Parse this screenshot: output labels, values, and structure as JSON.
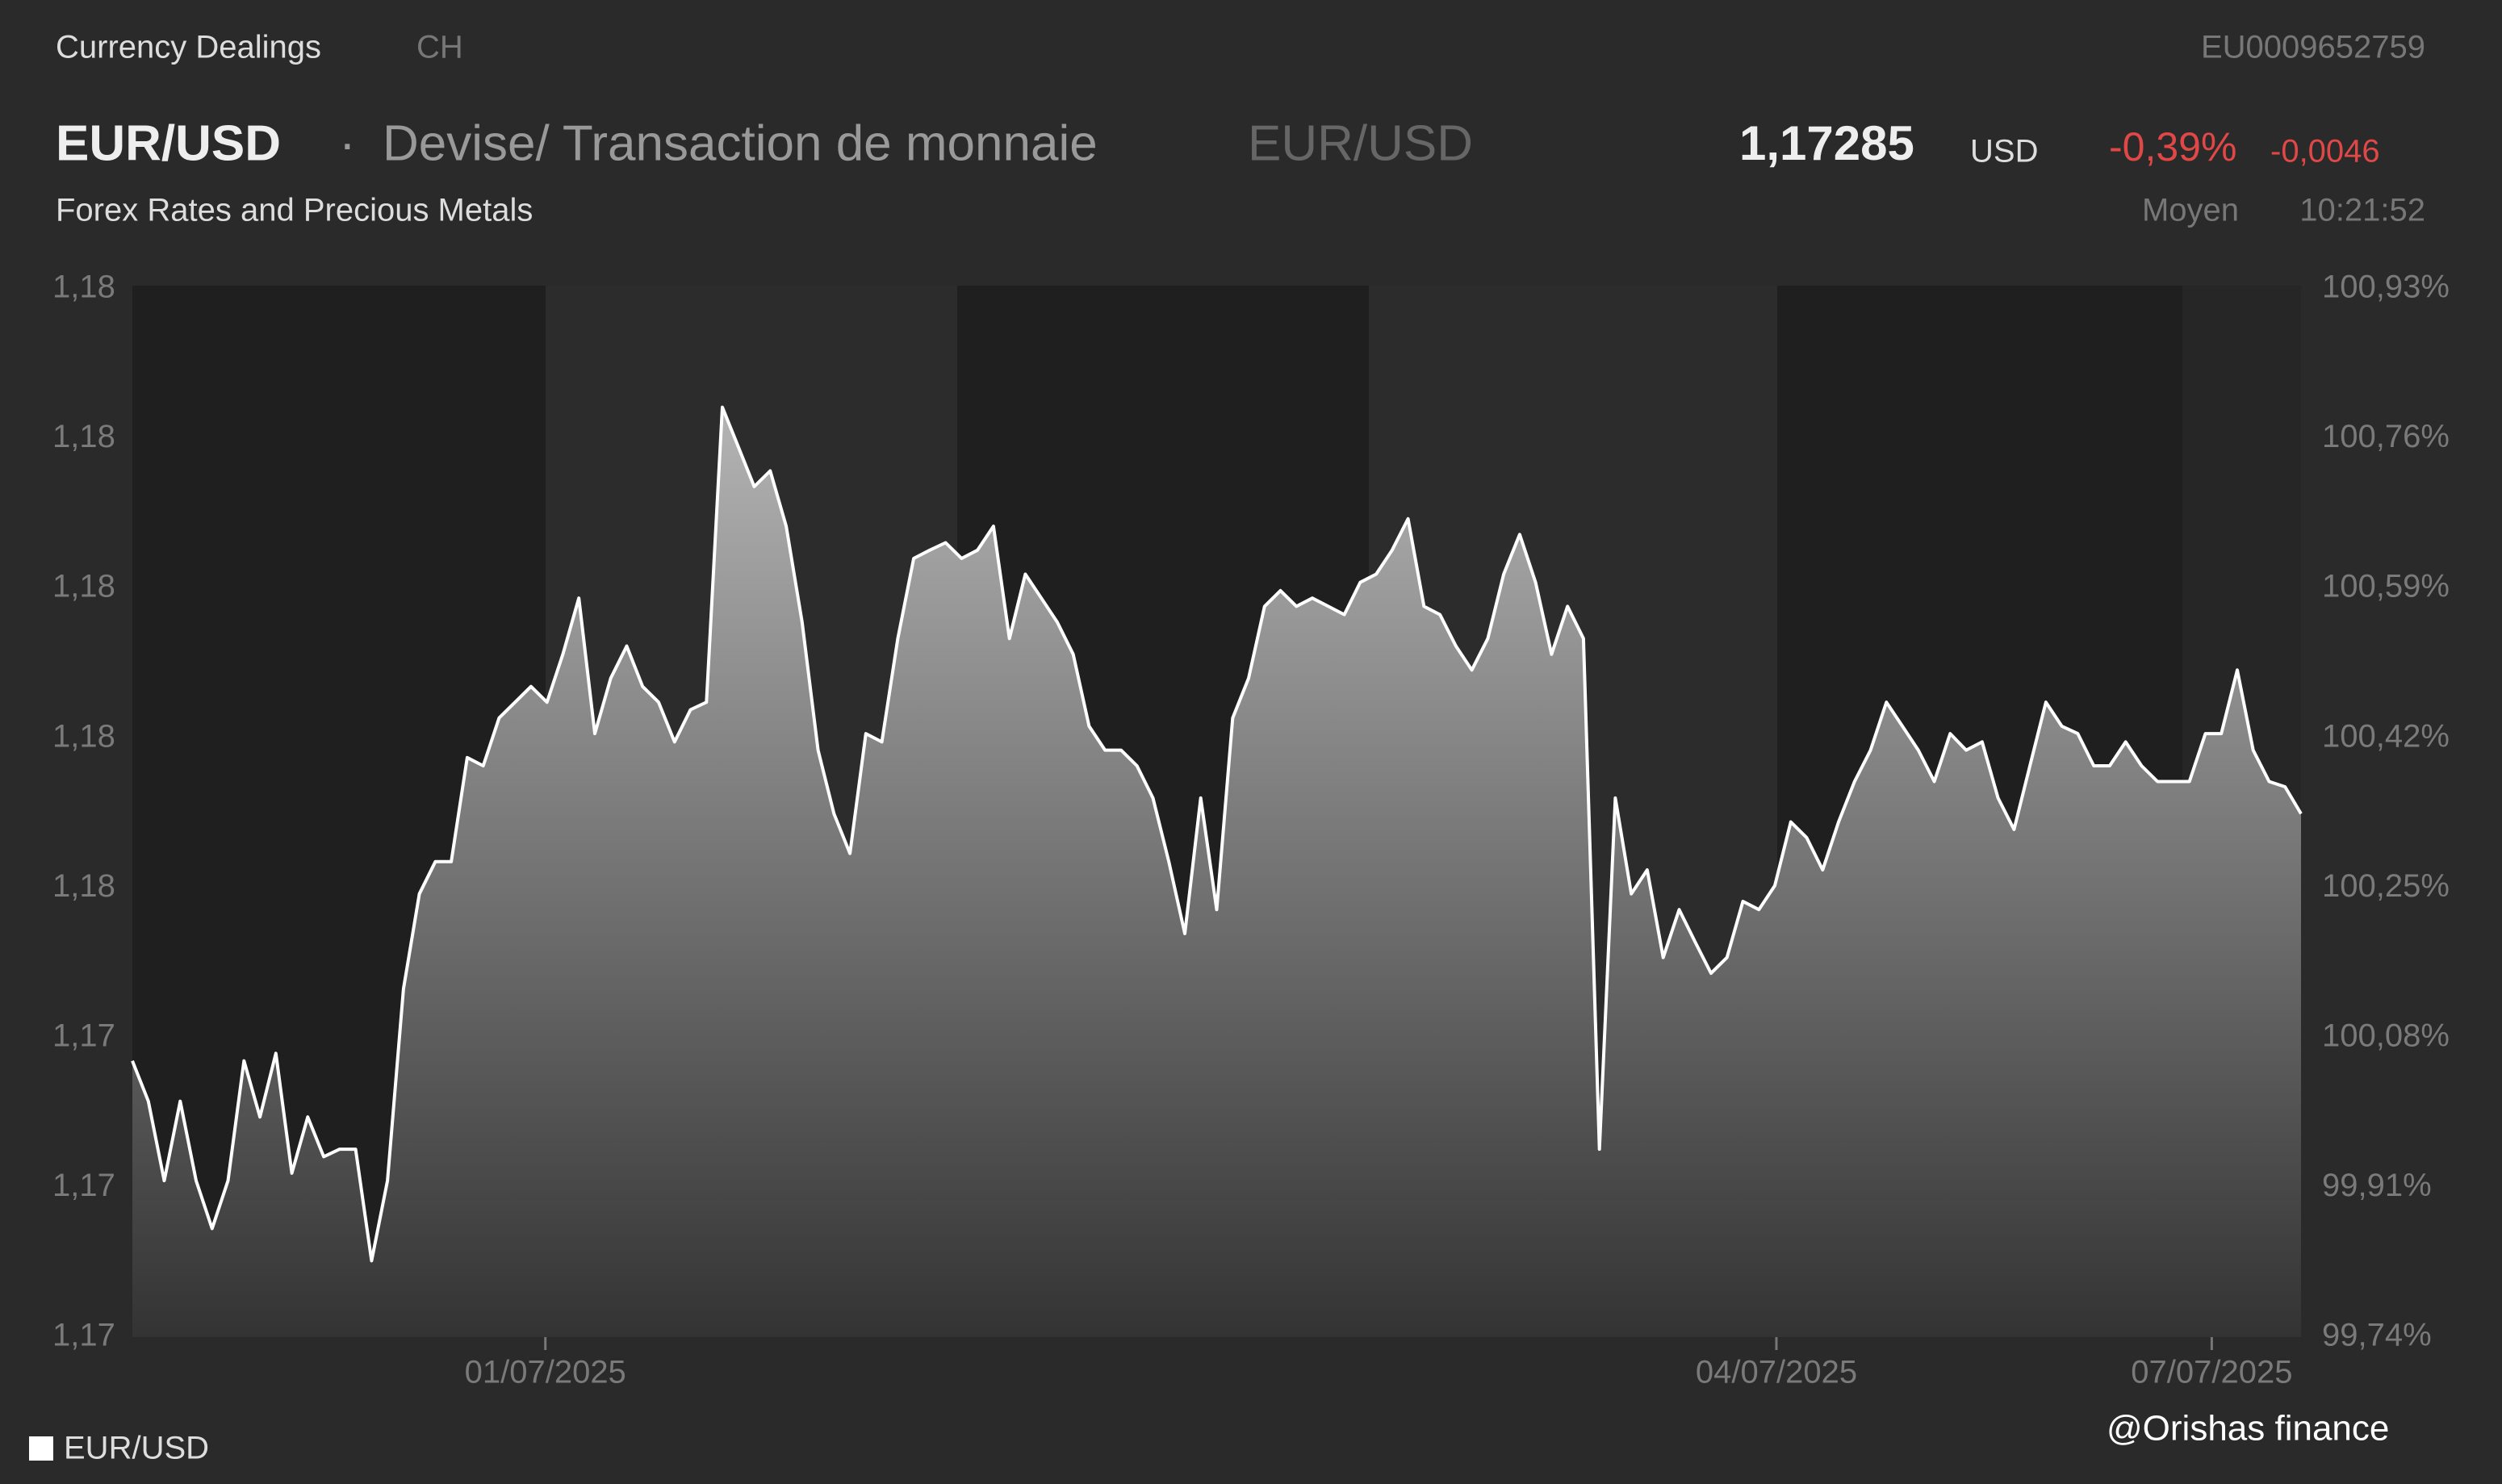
{
  "header": {
    "section": "Currency Dealings",
    "country": "CH",
    "isin": "EU0009652759",
    "symbol": "EUR/USD",
    "separator": "·",
    "description": "Devise/ Transaction de monnaie",
    "symbol_alt": "EUR/USD",
    "price": "1,17285",
    "currency": "USD",
    "change_pct": "-0,39%",
    "change_abs": "-0,0046",
    "category": "Forex Rates and Precious Metals",
    "quote_type": "Moyen",
    "time": "10:21:52"
  },
  "watermark": "@Orishas finance",
  "chart_data": {
    "type": "area",
    "series": [
      {
        "name": "EUR/USD",
        "color": "#ffffff",
        "values": [
          1.17369,
          1.17315,
          1.17209,
          1.17315,
          1.17209,
          1.17145,
          1.17209,
          1.17369,
          1.17294,
          1.17379,
          1.17219,
          1.17294,
          1.17241,
          1.17251,
          1.17251,
          1.17102,
          1.17209,
          1.17465,
          1.17592,
          1.17635,
          1.17635,
          1.17774,
          1.17763,
          1.17827,
          1.17848,
          1.17869,
          1.17848,
          1.17912,
          1.17987,
          1.17806,
          1.1788,
          1.17923,
          1.17869,
          1.17848,
          1.17795,
          1.17838,
          1.17848,
          1.18242,
          1.18189,
          1.18136,
          1.18157,
          1.18083,
          1.17955,
          1.17784,
          1.17699,
          1.17646,
          1.17806,
          1.17795,
          1.17933,
          1.1804,
          1.18051,
          1.18061,
          1.1804,
          1.18051,
          1.18083,
          1.17933,
          1.18019,
          1.17987,
          1.17955,
          1.17912,
          1.17816,
          1.17784,
          1.17784,
          1.17763,
          1.1772,
          1.17635,
          1.17539,
          1.1772,
          1.17571,
          1.17827,
          1.1788,
          1.17976,
          1.17997,
          1.17976,
          1.17987,
          1.17976,
          1.17965,
          1.18008,
          1.18019,
          1.18051,
          1.18093,
          1.17976,
          1.17965,
          1.17923,
          1.17891,
          1.17933,
          1.18019,
          1.18072,
          1.18008,
          1.17912,
          1.17976,
          1.17933,
          1.17251,
          1.1772,
          1.17592,
          1.17624,
          1.17507,
          1.17571,
          1.17528,
          1.17486,
          1.17507,
          1.17582,
          1.17571,
          1.17603,
          1.17688,
          1.17667,
          1.17624,
          1.17688,
          1.17742,
          1.17784,
          1.17848,
          1.17816,
          1.17784,
          1.17742,
          1.17806,
          1.17784,
          1.17795,
          1.1772,
          1.17678,
          1.17763,
          1.17848,
          1.17816,
          1.17806,
          1.17763,
          1.17763,
          1.17795,
          1.17763,
          1.17742,
          1.17742,
          1.17742,
          1.17806,
          1.17806,
          1.17891,
          1.17784,
          1.17742,
          1.17735,
          1.17699
        ]
      }
    ],
    "xlim": [
      0,
      136
    ],
    "xticks": [
      {
        "value": 25.9,
        "label": "01/07/2025"
      },
      {
        "value": 103.1,
        "label": "04/07/2025"
      },
      {
        "value": 130.4,
        "label": "07/07/2025"
      }
    ],
    "ylim": [
      1.17,
      1.184
    ],
    "yticks": [
      {
        "value": 1.17,
        "label": "1,17"
      },
      {
        "value": 1.172,
        "label": "1,17"
      },
      {
        "value": 1.174,
        "label": "1,17"
      },
      {
        "value": 1.176,
        "label": "1,18"
      },
      {
        "value": 1.178,
        "label": "1,18"
      },
      {
        "value": 1.18,
        "label": "1,18"
      },
      {
        "value": 1.182,
        "label": "1,18"
      },
      {
        "value": 1.184,
        "label": "1,18"
      }
    ],
    "y2lim": [
      99.74,
      100.93
    ],
    "y2ticks": [
      {
        "value": 99.74,
        "label": "99,74%"
      },
      {
        "value": 99.91,
        "label": "99,91%"
      },
      {
        "value": 100.08,
        "label": "100,08%"
      },
      {
        "value": 100.25,
        "label": "100,25%"
      },
      {
        "value": 100.42,
        "label": "100,42%"
      },
      {
        "value": 100.59,
        "label": "100,59%"
      },
      {
        "value": 100.76,
        "label": "100,76%"
      },
      {
        "value": 100.93,
        "label": "100,93%"
      }
    ],
    "legend": "bottom-left"
  }
}
